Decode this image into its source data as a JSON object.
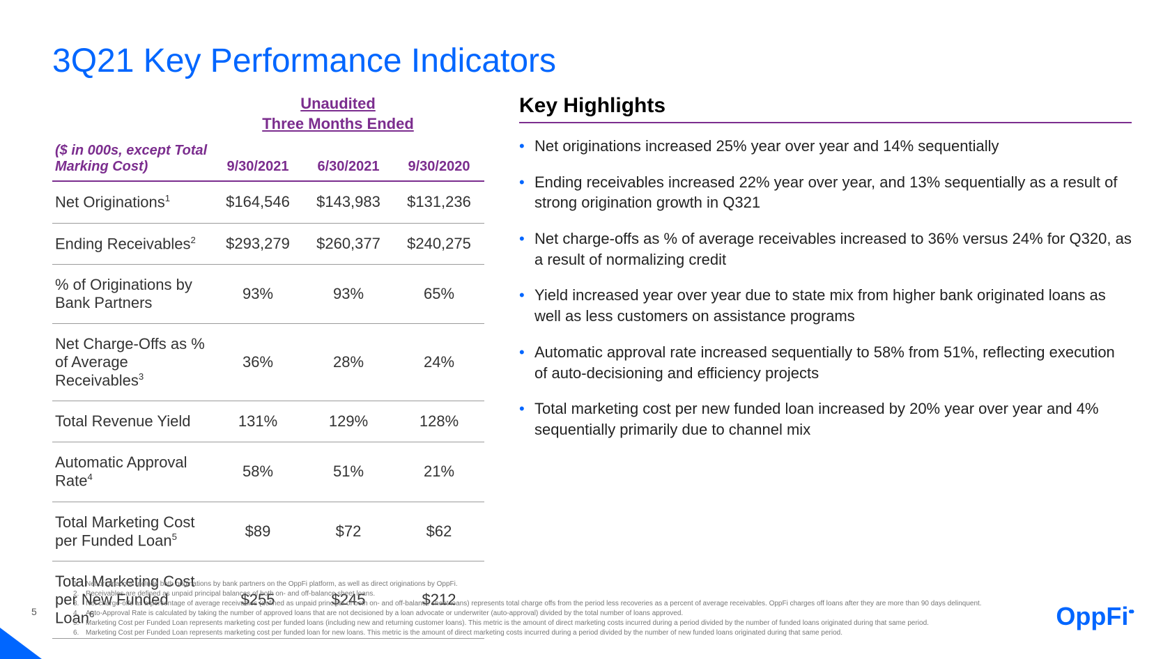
{
  "title": "3Q21 Key Performance Indicators",
  "table": {
    "period_label_line1": "Unaudited",
    "period_label_line2": "Three Months Ended",
    "header_note": "($ in 000s, except Total Marking Cost)",
    "columns": [
      "9/30/2021",
      "6/30/2021",
      "9/30/2020"
    ],
    "rows": [
      {
        "label": "Net Originations",
        "sup": "1",
        "values": [
          "$164,546",
          "$143,983",
          "$131,236"
        ]
      },
      {
        "label": "Ending Receivables",
        "sup": "2",
        "values": [
          "$293,279",
          "$260,377",
          "$240,275"
        ]
      },
      {
        "label": "% of Originations by Bank Partners",
        "sup": "",
        "values": [
          "93%",
          "93%",
          "65%"
        ]
      },
      {
        "label": "Net Charge-Offs as % of Average Receivables",
        "sup": "3",
        "values": [
          "36%",
          "28%",
          "24%"
        ]
      },
      {
        "label": "Total Revenue Yield",
        "sup": "",
        "values": [
          "131%",
          "129%",
          "128%"
        ]
      },
      {
        "label": "Automatic Approval Rate",
        "sup": "4",
        "values": [
          "58%",
          "51%",
          "21%"
        ]
      },
      {
        "label": "Total Marketing Cost per Funded Loan",
        "sup": "5",
        "values": [
          "$89",
          "$72",
          "$62"
        ]
      },
      {
        "label": "Total Marketing Cost per New Funded Loan",
        "sup": "6",
        "values": [
          "$255",
          "$245",
          "$212"
        ]
      }
    ]
  },
  "highlights": {
    "title": "Key Highlights",
    "items": [
      "Net originations increased 25% year over year and 14% sequentially",
      "Ending receivables increased 22% year over year, and 13% sequentially as a result of strong origination growth in Q321",
      "Net charge-offs as % of average receivables increased to 36% versus 24% for Q320, as a result of normalizing credit",
      "Yield increased year over year due to state mix from higher bank originated loans as well as less customers on assistance programs",
      "Automatic approval rate increased sequentially to 58% from 51%, reflecting execution of auto-decisioning and efficiency projects",
      "Total marketing cost per new funded loan increased by 20% year over year and 4% sequentially primarily due to channel mix"
    ]
  },
  "footnotes": [
    "Net originations include both originations by bank partners on the OppFi platform, as well as direct originations by OppFi.",
    "Receivables are defined as unpaid principal balances of both on- and off-balance sheet loans.",
    "Net charge-offs as a percentage of average receivables (defined as unpaid principal of both on- and off-balance sheet loans) represents total charge offs from the period less recoveries as a percent of average receivables. OppFi charges off loans after they are more than 90 days delinquent.",
    "Auto-Approval Rate is calculated by taking the number of approved loans that are not decisioned by a loan advocate or underwriter (auto-approval) divided by the total number of loans approved.",
    "Marketing Cost per Funded Loan represents marketing cost per funded loans (including new and returning customer loans). This metric is the amount of direct marketing costs incurred during a period divided by the number of funded loans originated during that same period.",
    "Marketing Cost per Funded Loan represents marketing cost per funded loan for new loans. This metric is the amount of direct marketing costs incurred during a period divided by the number of new funded loans originated during that same period."
  ],
  "page_number": "5",
  "logo_text": "OppFi",
  "colors": {
    "brand_blue": "#0066ff",
    "accent_purple": "#7b2d8e",
    "text_dark": "#333333",
    "footnote_gray": "#777777",
    "border_gray": "#9a9a9a"
  }
}
